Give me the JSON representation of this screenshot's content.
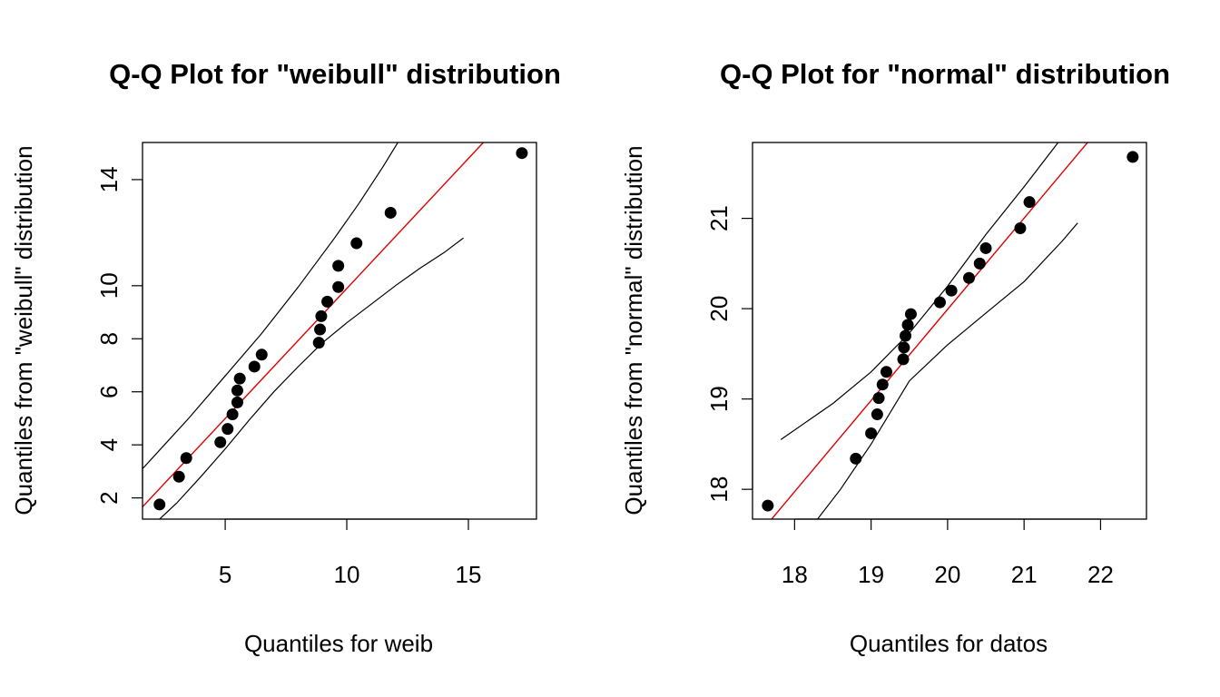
{
  "chart_data": [
    {
      "type": "scatter",
      "title": "Q-Q Plot for \"weibull\" distribution",
      "xlabel": "Quantiles for weib",
      "ylabel": "Quantiles from \"weibull\" distribution",
      "xlim": [
        1.6,
        17.8
      ],
      "ylim": [
        1.2,
        15.4
      ],
      "x_ticks": [
        5,
        10,
        15
      ],
      "y_ticks": [
        2,
        4,
        6,
        8,
        10,
        14
      ],
      "grid": false,
      "points": {
        "x": [
          2.3,
          3.1,
          3.4,
          4.8,
          5.1,
          5.3,
          5.5,
          5.5,
          5.6,
          6.2,
          6.5,
          8.85,
          8.9,
          8.95,
          9.2,
          9.65,
          9.65,
          10.4,
          11.8,
          17.2
        ],
        "y": [
          1.75,
          2.8,
          3.5,
          4.1,
          4.6,
          5.15,
          5.6,
          6.05,
          6.5,
          6.95,
          7.4,
          7.85,
          8.35,
          8.85,
          9.4,
          9.95,
          10.75,
          11.6,
          12.75,
          15.0
        ]
      },
      "reference_line": {
        "color": "#e00000",
        "points": [
          [
            1.6,
            1.66
          ],
          [
            16.3,
            16.07
          ]
        ]
      },
      "upper_envelope": [
        [
          1.6,
          3.1
        ],
        [
          2.5,
          4.0
        ],
        [
          3.5,
          5.0
        ],
        [
          5.0,
          6.6
        ],
        [
          6.5,
          8.2
        ],
        [
          8.0,
          9.95
        ],
        [
          9.5,
          11.8
        ],
        [
          10.5,
          13.1
        ],
        [
          11.5,
          14.5
        ],
        [
          12.5,
          16.0
        ]
      ],
      "lower_envelope": [
        [
          2.3,
          1.2
        ],
        [
          3.0,
          1.8
        ],
        [
          4.0,
          2.8
        ],
        [
          5.0,
          3.85
        ],
        [
          6.0,
          4.95
        ],
        [
          7.0,
          6.0
        ],
        [
          8.0,
          6.95
        ],
        [
          9.0,
          7.85
        ],
        [
          10.0,
          8.6
        ],
        [
          11.0,
          9.3
        ],
        [
          12.0,
          10.0
        ],
        [
          13.0,
          10.65
        ],
        [
          14.0,
          11.25
        ],
        [
          14.8,
          11.8
        ]
      ]
    },
    {
      "type": "scatter",
      "title": "Q-Q Plot for \"normal\" distribution",
      "xlabel": "Quantiles for datos",
      "ylabel": "Quantiles from \"normal\" distribution",
      "xlim": [
        17.45,
        22.6
      ],
      "ylim": [
        17.67,
        21.84
      ],
      "x_ticks": [
        18,
        19,
        20,
        21,
        22
      ],
      "y_ticks": [
        18,
        19,
        20,
        21
      ],
      "grid": false,
      "points": {
        "x": [
          17.65,
          18.8,
          19.0,
          19.08,
          19.1,
          19.15,
          19.2,
          19.42,
          19.43,
          19.45,
          19.48,
          19.52,
          19.9,
          20.05,
          20.28,
          20.42,
          20.5,
          20.95,
          21.07,
          22.42
        ],
        "y": [
          17.82,
          18.34,
          18.62,
          18.83,
          19.01,
          19.16,
          19.3,
          19.44,
          19.57,
          19.7,
          19.82,
          19.94,
          20.07,
          20.2,
          20.34,
          20.5,
          20.67,
          20.89,
          21.18,
          21.68
        ]
      },
      "reference_line": {
        "color": "#e00000",
        "points": [
          [
            17.65,
            17.62
          ],
          [
            21.85,
            21.86
          ]
        ]
      },
      "upper_envelope": [
        [
          17.82,
          18.55
        ],
        [
          18.5,
          18.95
        ],
        [
          19.0,
          19.3
        ],
        [
          19.5,
          19.73
        ],
        [
          20.0,
          20.25
        ],
        [
          20.5,
          20.82
        ],
        [
          21.0,
          21.35
        ],
        [
          21.5,
          21.9
        ]
      ],
      "lower_envelope": [
        [
          18.3,
          17.67
        ],
        [
          18.6,
          18.0
        ],
        [
          19.0,
          18.5
        ],
        [
          19.5,
          19.2
        ],
        [
          20.0,
          19.6
        ],
        [
          20.5,
          19.95
        ],
        [
          21.0,
          20.3
        ],
        [
          21.5,
          20.75
        ],
        [
          21.7,
          20.95
        ]
      ]
    }
  ]
}
